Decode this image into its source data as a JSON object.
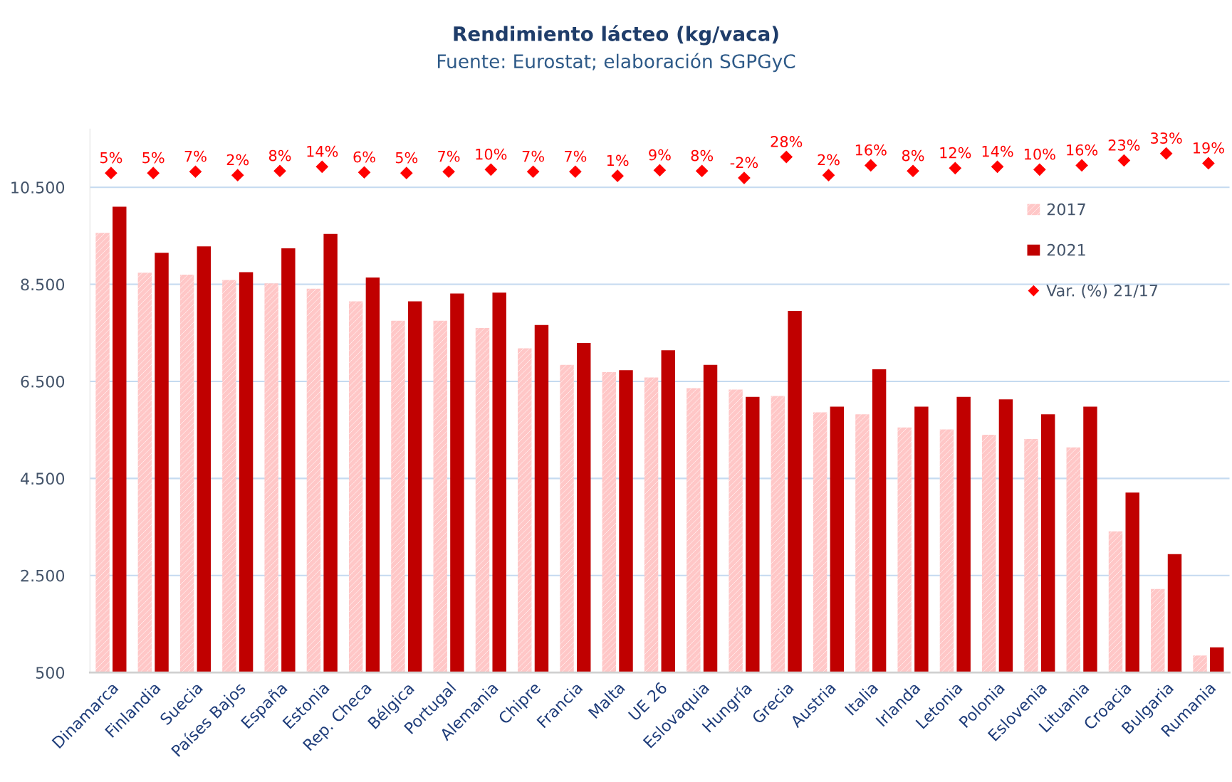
{
  "chart_data": {
    "type": "bar",
    "title": "Rendimiento lácteo (kg/vaca)",
    "subtitle": "Fuente: Eurostat; elaboración SGPGyC",
    "categories": [
      "Dinamarca",
      "Finlandia",
      "Suecia",
      "Países Bajos",
      "España",
      "Estonia",
      "Rep. Checa",
      "Bélgica",
      "Portugal",
      "Alemania",
      "Chipre",
      "Francia",
      "Malta",
      "UE 26",
      "Eslovaquia",
      "Hungría",
      "Grecia",
      "Austria",
      "Italia",
      "Irlanda",
      "Letonia",
      "Polonia",
      "Eslovenia",
      "Lituania",
      "Croacia",
      "Bulgaria",
      "Rumania"
    ],
    "series": [
      {
        "name": "2017",
        "color": "#ffc7c7",
        "values": [
          9560,
          8740,
          8700,
          8590,
          8520,
          8410,
          8150,
          7750,
          7750,
          7600,
          7180,
          6840,
          6690,
          6580,
          6360,
          6330,
          6200,
          5860,
          5820,
          5550,
          5510,
          5400,
          5310,
          5140,
          3410,
          2220,
          850
        ]
      },
      {
        "name": "2021",
        "color": "#c00000",
        "values": [
          10100,
          9150,
          9280,
          8750,
          9240,
          9540,
          8640,
          8150,
          8310,
          8330,
          7660,
          7290,
          6730,
          7140,
          6840,
          6180,
          7950,
          5980,
          6750,
          5980,
          6180,
          6130,
          5820,
          5980,
          4210,
          2940,
          1020
        ]
      },
      {
        "name": "Var. (%) 21/17",
        "type": "scatter",
        "axis": "y2",
        "color": "#ff0000",
        "marker": "diamond",
        "values": [
          5,
          5,
          7,
          2,
          8,
          14,
          6,
          5,
          7,
          10,
          7,
          7,
          1,
          9,
          8,
          -2,
          28,
          2,
          16,
          8,
          12,
          14,
          10,
          16,
          23,
          33,
          19
        ],
        "value_labels": [
          "5%",
          "5%",
          "7%",
          "2%",
          "8%",
          "14%",
          "6%",
          "5%",
          "7%",
          "10%",
          "7%",
          "7%",
          "1%",
          "9%",
          "8%",
          "-2%",
          "28%",
          "2%",
          "16%",
          "8%",
          "12%",
          "14%",
          "10%",
          "16%",
          "23%",
          "33%",
          "19%"
        ]
      }
    ],
    "ylim": [
      500,
      11700
    ],
    "yticks": [
      {
        "value": 500,
        "label": "500"
      },
      {
        "value": 2500,
        "label": "2.500"
      },
      {
        "value": 4500,
        "label": "4.500"
      },
      {
        "value": 6500,
        "label": "6.500"
      },
      {
        "value": 8500,
        "label": "8.500"
      },
      {
        "value": 10500,
        "label": "10.500"
      }
    ],
    "grid": "y",
    "legend": "top right"
  }
}
